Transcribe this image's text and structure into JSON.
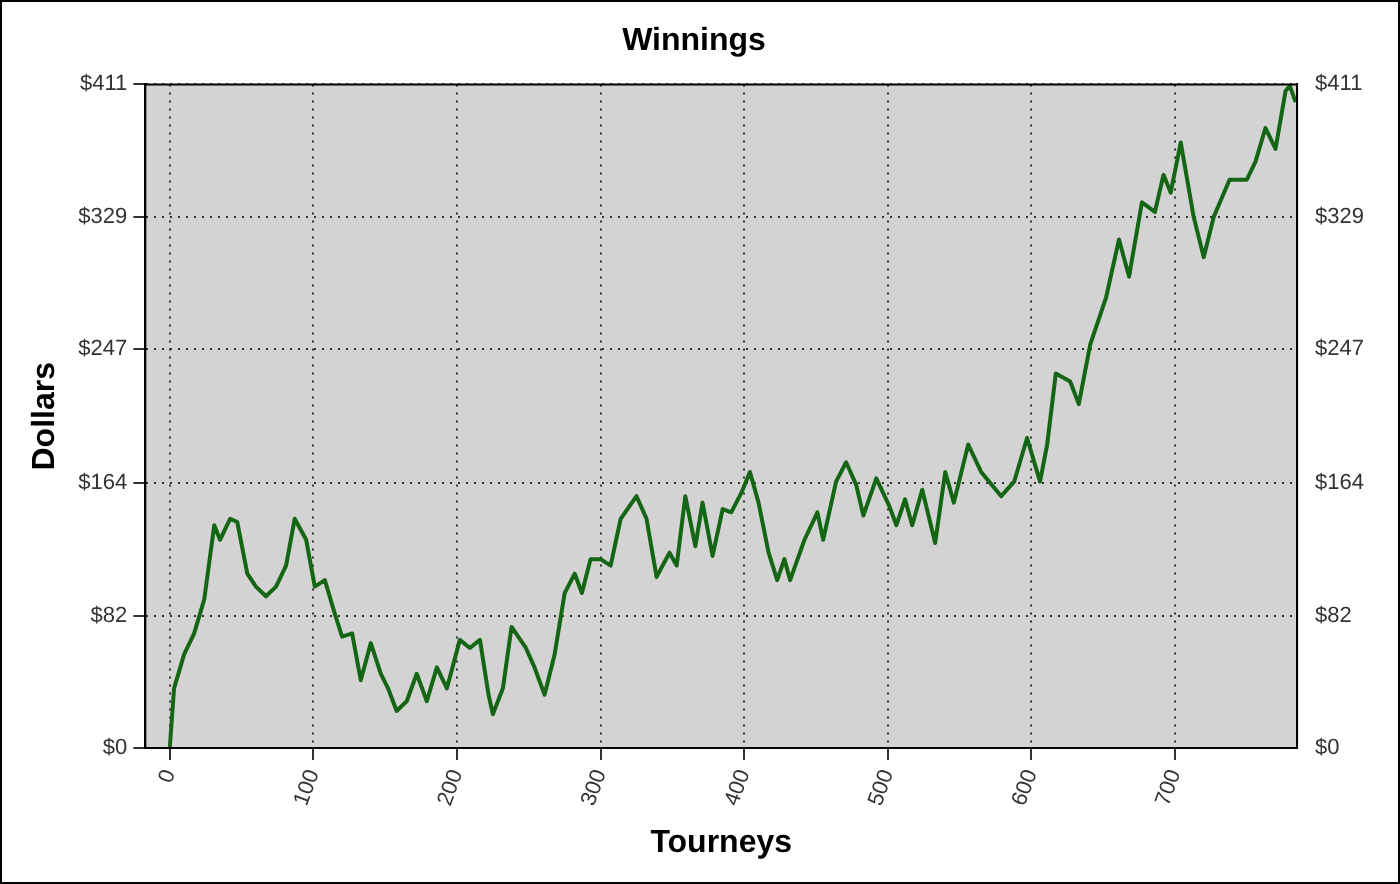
{
  "chart_data": {
    "type": "line",
    "title": "Winnings",
    "xlabel": "Tourneys",
    "ylabel": "Dollars",
    "grid": true,
    "marker": "none",
    "line_style": "solid",
    "xlim": [
      -17,
      785
    ],
    "xticks": [
      0,
      100,
      200,
      300,
      400,
      500,
      600,
      700
    ],
    "ylim": [
      0,
      411
    ],
    "yticks": [
      {
        "value": 0,
        "label": "$0"
      },
      {
        "value": 82,
        "label": "$82"
      },
      {
        "value": 164,
        "label": "$164"
      },
      {
        "value": 247,
        "label": "$247"
      },
      {
        "value": 329,
        "label": "$329"
      },
      {
        "value": 411,
        "label": "$411"
      }
    ],
    "y2lim": [
      0,
      411
    ],
    "y2ticks": [
      {
        "value": 0,
        "label": "$0"
      },
      {
        "value": 82,
        "label": "$82"
      },
      {
        "value": 164,
        "label": "$164"
      },
      {
        "value": 247,
        "label": "$247"
      },
      {
        "value": 329,
        "label": "$329"
      },
      {
        "value": 411,
        "label": "$411"
      }
    ],
    "series": [
      {
        "color": "#146614",
        "x": [
          0,
          3,
          10,
          17,
          24,
          31,
          35,
          42,
          47,
          54,
          60,
          67,
          74,
          81,
          87,
          95,
          101,
          108,
          115,
          120,
          127,
          133,
          140,
          147,
          152,
          158,
          165,
          172,
          179,
          186,
          193,
          202,
          209,
          216,
          222,
          225,
          232,
          238,
          248,
          254,
          261,
          268,
          275,
          282,
          287,
          293,
          300,
          307,
          314,
          325,
          332,
          339,
          348,
          353,
          359,
          366,
          371,
          378,
          385,
          391,
          398,
          404,
          410,
          417,
          423,
          428,
          432,
          442,
          451,
          455,
          464,
          471,
          478,
          483,
          492,
          501,
          506,
          512,
          517,
          524,
          533,
          540,
          546,
          556,
          565,
          579,
          588,
          597,
          606,
          611,
          617,
          627,
          633,
          641,
          652,
          661,
          668,
          677,
          686,
          692,
          697,
          704,
          713,
          720,
          727,
          738,
          750,
          756,
          763,
          770,
          777,
          780,
          784
        ],
        "values": [
          0,
          37,
          58,
          71,
          92,
          138,
          129,
          142,
          140,
          108,
          100,
          94,
          100,
          113,
          142,
          129,
          100,
          104,
          83,
          69,
          71,
          42,
          65,
          46,
          37,
          23,
          29,
          46,
          29,
          50,
          37,
          67,
          62,
          67,
          33,
          21,
          37,
          75,
          62,
          50,
          33,
          58,
          96,
          108,
          96,
          117,
          117,
          113,
          142,
          156,
          142,
          106,
          121,
          113,
          156,
          125,
          152,
          119,
          148,
          146,
          158,
          171,
          152,
          121,
          104,
          117,
          104,
          129,
          146,
          129,
          165,
          177,
          163,
          144,
          167,
          150,
          138,
          154,
          138,
          160,
          127,
          171,
          152,
          188,
          171,
          156,
          165,
          192,
          165,
          188,
          232,
          227,
          213,
          250,
          279,
          315,
          292,
          338,
          332,
          355,
          344,
          375,
          329,
          304,
          329,
          352,
          352,
          363,
          384,
          371,
          407,
          410,
          400
        ]
      }
    ]
  }
}
